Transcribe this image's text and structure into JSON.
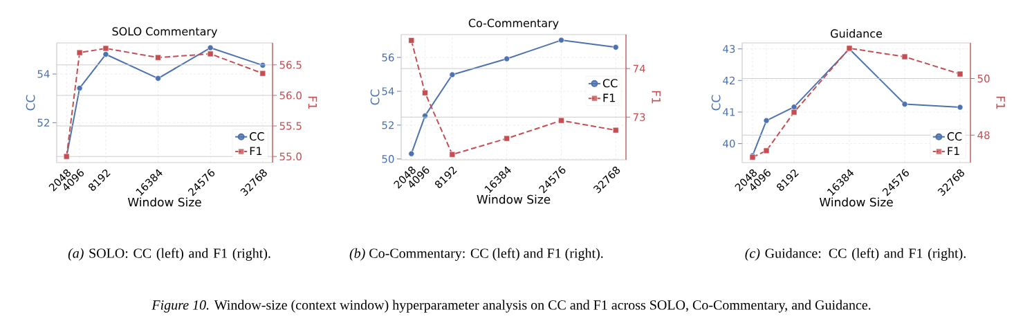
{
  "chart_data": [
    {
      "type": "line",
      "title": "SOLO Commentary",
      "xlabel": "Window Size",
      "ylabel": "CC",
      "y2label": "F1",
      "x": [
        2048,
        4096,
        8192,
        16384,
        24576,
        32768
      ],
      "xlim": [
        512,
        34304
      ],
      "xticks": [
        2048,
        4096,
        8192,
        16384,
        24576,
        32768
      ],
      "ylim": [
        50.36,
        55.28
      ],
      "yticks": [
        52,
        54
      ],
      "y2lim": [
        54.9,
        56.86
      ],
      "y2ticks": [
        {
          "value": 55,
          "label": "55.0"
        },
        55.5,
        {
          "value": 56,
          "label": "56.0"
        },
        56.5
      ],
      "grid": true,
      "legend": "bottom right",
      "series": [
        {
          "name": "CC",
          "color": "#4c72b0",
          "axis": "y",
          "marker": "circle",
          "line_style": "solid",
          "values": [
            50.6,
            53.42,
            54.81,
            53.82,
            55.08,
            54.36
          ]
        },
        {
          "name": "F1",
          "color": "#c44e52",
          "axis": "y2",
          "marker": "square",
          "line_style": "dashed",
          "values": [
            55.0,
            56.7,
            56.77,
            56.62,
            56.68,
            56.36
          ]
        }
      ],
      "annotations": [
        "*(a)* SOLO: CC (left) and F1 (right)."
      ]
    },
    {
      "type": "line",
      "title": "Co-Commentary",
      "xlabel": "Window Size",
      "ylabel": "CC",
      "y2label": "F1",
      "x": [
        2048,
        4096,
        8192,
        16384,
        24576,
        32768
      ],
      "xlim": [
        512,
        34304
      ],
      "xticks": [
        2048,
        4096,
        8192,
        16384,
        24576,
        32768
      ],
      "ylim": [
        49.95,
        57.35
      ],
      "yticks": [
        50,
        52,
        54,
        56
      ],
      "y2lim": [
        72.12,
        74.7
      ],
      "y2ticks": [
        73,
        74
      ],
      "grid": true,
      "legend": "right",
      "series": [
        {
          "name": "CC",
          "color": "#4c72b0",
          "axis": "y",
          "marker": "circle",
          "line_style": "solid",
          "values": [
            50.31,
            52.55,
            54.98,
            55.92,
            57.02,
            56.6
          ]
        },
        {
          "name": "F1",
          "color": "#c44e52",
          "axis": "y2",
          "marker": "square",
          "line_style": "dashed",
          "values": [
            74.58,
            73.5,
            72.23,
            72.56,
            72.93,
            72.73
          ]
        }
      ],
      "annotations": [
        "*(b)* Co-Commentary: CC (left) and F1 (right).",
        "*Figure 10.* Window-size (context window) hyperparameter analysis on CC and F1 across SOLO, Co-Commentary, and Guidance."
      ]
    },
    {
      "type": "line",
      "title": "Guidance",
      "xlabel": "Window Size",
      "ylabel": "CC",
      "y2label": "F1",
      "x": [
        2048,
        4096,
        8192,
        16384,
        24576,
        32768
      ],
      "xlim": [
        512,
        34304
      ],
      "xticks": [
        2048,
        4096,
        8192,
        16384,
        24576,
        32768
      ],
      "ylim": [
        39.4,
        43.19
      ],
      "yticks": [
        40,
        41,
        42,
        43
      ],
      "y2lim": [
        47.03,
        51.26
      ],
      "y2ticks": [
        48,
        50
      ],
      "grid": true,
      "legend": "bottom right",
      "series": [
        {
          "name": "CC",
          "color": "#4c72b0",
          "axis": "y",
          "marker": "circle",
          "line_style": "solid",
          "values": [
            39.62,
            40.73,
            41.16,
            43.0,
            41.25,
            41.15
          ]
        },
        {
          "name": "F1",
          "color": "#c44e52",
          "axis": "y2",
          "marker": "square",
          "line_style": "dashed",
          "values": [
            47.22,
            47.45,
            48.81,
            51.07,
            50.77,
            50.16
          ]
        }
      ],
      "annotations": [
        "*(c)* Guidance: CC (left) and F1 (right)."
      ]
    }
  ]
}
